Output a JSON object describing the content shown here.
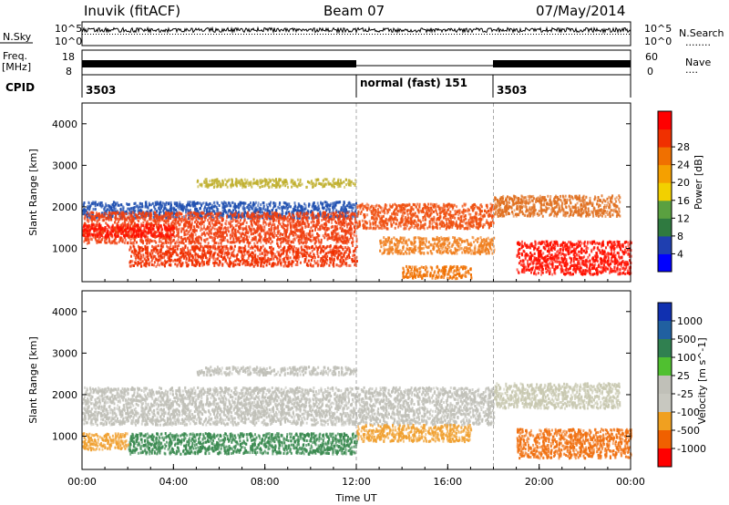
{
  "header": {
    "station_title": "Inuvik (fitACF)",
    "beam_title": "Beam 07",
    "date": "07/May/2014"
  },
  "top_panels": {
    "nsky_label": "N.Sky",
    "nsearch_label": "N.Search",
    "nsearch_legend": "........",
    "noise_ticks": [
      "10^5",
      "10^0"
    ],
    "freq_label": "Freq.",
    "freq_unit": "[MHz]",
    "freq_ticks": [
      "18",
      "8"
    ],
    "nave_label": "Nave",
    "nave_legend": "....",
    "nave_ticks": [
      "60",
      "0"
    ],
    "cpid_label": "CPID",
    "cpid_segments": [
      {
        "text": "3503",
        "start_hour": 0,
        "end_hour": 12
      },
      {
        "text": "normal (fast) 151",
        "start_hour": 12,
        "end_hour": 18
      },
      {
        "text": "3503",
        "start_hour": 18,
        "end_hour": 24
      }
    ]
  },
  "chart_data": [
    {
      "type": "heatmap",
      "name": "power",
      "xlabel": "",
      "ylabel": "Slant Range [km]",
      "ylim": [
        200,
        4500
      ],
      "xlim": [
        0,
        24
      ],
      "yticks": [
        "1000",
        "2000",
        "3000",
        "4000"
      ],
      "colorbar_label": "Power [dB]",
      "colorbar_ticks": [
        "4",
        "8",
        "12",
        "16",
        "20",
        "24",
        "28"
      ],
      "colorbar_colors": [
        "#0000ff",
        "#1f3fb0",
        "#2f7a40",
        "#5aa040",
        "#f2d000",
        "#f5a000",
        "#f07000",
        "#f03000",
        "#ff0000"
      ],
      "bands": [
        {
          "x0": 0,
          "x1": 12,
          "y0": 1750,
          "y1": 2150,
          "color": "#2050b0"
        },
        {
          "x0": 0,
          "x1": 12,
          "y0": 1150,
          "y1": 1900,
          "color": "#f04010"
        },
        {
          "x0": 0,
          "x1": 4,
          "y0": 1300,
          "y1": 1600,
          "color": "#ff1000"
        },
        {
          "x0": 2,
          "x1": 12,
          "y0": 600,
          "y1": 1100,
          "color": "#f03000"
        },
        {
          "x0": 12,
          "x1": 18,
          "y0": 1500,
          "y1": 2100,
          "color": "#f05010"
        },
        {
          "x0": 13,
          "x1": 18,
          "y0": 900,
          "y1": 1300,
          "color": "#f08020"
        },
        {
          "x0": 14,
          "x1": 17,
          "y0": 300,
          "y1": 600,
          "color": "#f07000"
        },
        {
          "x0": 18,
          "x1": 23.5,
          "y0": 1800,
          "y1": 2300,
          "color": "#e07020"
        },
        {
          "x0": 19,
          "x1": 24,
          "y0": 400,
          "y1": 1200,
          "color": "#ff1000"
        },
        {
          "x0": 5,
          "x1": 12,
          "y0": 2500,
          "y1": 2700,
          "color": "#c0b030"
        }
      ]
    },
    {
      "type": "heatmap",
      "name": "velocity",
      "xlabel": "Time UT",
      "ylabel": "Slant Range [km]",
      "ylim": [
        200,
        4500
      ],
      "xlim": [
        0,
        24
      ],
      "xticks": [
        "00:00",
        "04:00",
        "08:00",
        "12:00",
        "16:00",
        "20:00",
        "00:00"
      ],
      "yticks": [
        "1000",
        "2000",
        "3000",
        "4000"
      ],
      "colorbar_label": "Velocity [m s^-1]",
      "colorbar_ticks": [
        "1000",
        "500",
        "100",
        "25",
        "-25",
        "-100",
        "-500",
        "-1000"
      ],
      "colorbar_colors": [
        "#1030b0",
        "#2060a0",
        "#308050",
        "#50c030",
        "#c0c0b8",
        "#c8c8c0",
        "#f0a020",
        "#f06000",
        "#ff0000"
      ],
      "bands": [
        {
          "x0": 0,
          "x1": 18,
          "y0": 1300,
          "y1": 2200,
          "color": "#c0c0b8"
        },
        {
          "x0": 2,
          "x1": 12,
          "y0": 600,
          "y1": 1100,
          "color": "#3a8a50"
        },
        {
          "x0": 0,
          "x1": 2,
          "y0": 700,
          "y1": 1100,
          "color": "#f0a030"
        },
        {
          "x0": 12,
          "x1": 17,
          "y0": 900,
          "y1": 1300,
          "color": "#f0a030"
        },
        {
          "x0": 18,
          "x1": 23.5,
          "y0": 1700,
          "y1": 2300,
          "color": "#c8c8b0"
        },
        {
          "x0": 19,
          "x1": 24,
          "y0": 500,
          "y1": 1200,
          "color": "#f07010"
        },
        {
          "x0": 5,
          "x1": 12,
          "y0": 2500,
          "y1": 2700,
          "color": "#c0c0b8"
        }
      ]
    }
  ]
}
